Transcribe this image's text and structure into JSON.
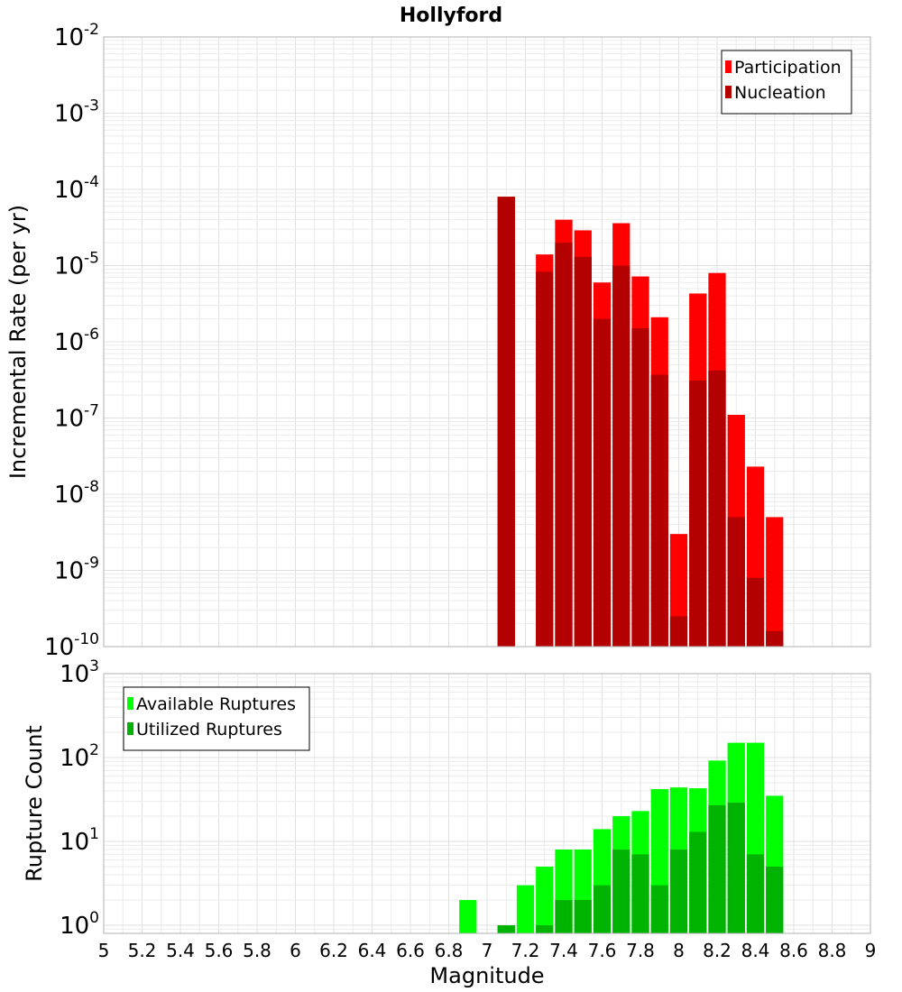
{
  "chart_data": [
    {
      "type": "bar",
      "title": "Hollyford",
      "ylabel": "Incremental Rate (per yr)",
      "xlabel": "",
      "y_scale": "log",
      "ylim": [
        1e-10,
        0.01
      ],
      "y_ticks": [
        {
          "base": "10",
          "exp": "-2"
        },
        {
          "base": "10",
          "exp": "-3"
        },
        {
          "base": "10",
          "exp": "-4"
        },
        {
          "base": "10",
          "exp": "-5"
        },
        {
          "base": "10",
          "exp": "-6"
        },
        {
          "base": "10",
          "exp": "-7"
        },
        {
          "base": "10",
          "exp": "-8"
        },
        {
          "base": "10",
          "exp": "-9"
        },
        {
          "base": "10",
          "exp": "-10"
        }
      ],
      "legend_position": "top-right",
      "grid": true,
      "x": [
        7.1,
        7.3,
        7.4,
        7.5,
        7.6,
        7.7,
        7.8,
        7.9,
        8.0,
        8.1,
        8.2,
        8.3,
        8.4,
        8.5
      ],
      "series": [
        {
          "name": "Participation",
          "color": "#ff0000",
          "values": [
            8e-05,
            1.4e-05,
            4e-05,
            2.9e-05,
            6e-06,
            3.6e-05,
            7.2e-06,
            2.1e-06,
            3e-09,
            4.3e-06,
            8e-06,
            1.1e-07,
            2.3e-08,
            5e-09
          ]
        },
        {
          "name": "Nucleation",
          "color": "#b30000",
          "values": [
            8e-05,
            8.3e-06,
            2e-05,
            1.3e-05,
            2e-06,
            1e-05,
            1.5e-06,
            3.7e-07,
            2.5e-10,
            3.1e-07,
            4.2e-07,
            5e-09,
            8e-10,
            1.6e-10
          ]
        }
      ]
    },
    {
      "type": "bar",
      "title": "",
      "ylabel": "Rupture Count",
      "xlabel": "Magnitude",
      "y_scale": "log",
      "ylim": [
        0.8,
        1000
      ],
      "y_ticks": [
        {
          "base": "10",
          "exp": "3"
        },
        {
          "base": "10",
          "exp": "2"
        },
        {
          "base": "10",
          "exp": "1"
        },
        {
          "base": "10",
          "exp": "0"
        }
      ],
      "xlim": [
        5,
        9
      ],
      "x_ticks": [
        "5",
        "5.2",
        "5.4",
        "5.6",
        "5.8",
        "6",
        "6.2",
        "6.4",
        "6.6",
        "6.8",
        "7",
        "7.2",
        "7.4",
        "7.6",
        "7.8",
        "8",
        "8.2",
        "8.4",
        "8.6",
        "8.8",
        "9"
      ],
      "legend_position": "top-left",
      "grid": true,
      "x": [
        6.9,
        7.1,
        7.2,
        7.3,
        7.4,
        7.5,
        7.6,
        7.7,
        7.8,
        7.9,
        8.0,
        8.1,
        8.2,
        8.3,
        8.4,
        8.5
      ],
      "series": [
        {
          "name": "Available Ruptures",
          "color": "#00ff00",
          "values": [
            2,
            1,
            3,
            5,
            8,
            8,
            14,
            20,
            23,
            42,
            44,
            43,
            92,
            150,
            150,
            35
          ]
        },
        {
          "name": "Utilized Ruptures",
          "color": "#00b300",
          "values": [
            0,
            1,
            0,
            1,
            2,
            2,
            3,
            8,
            7,
            3,
            8,
            13,
            27,
            29,
            7,
            5
          ]
        }
      ]
    }
  ]
}
